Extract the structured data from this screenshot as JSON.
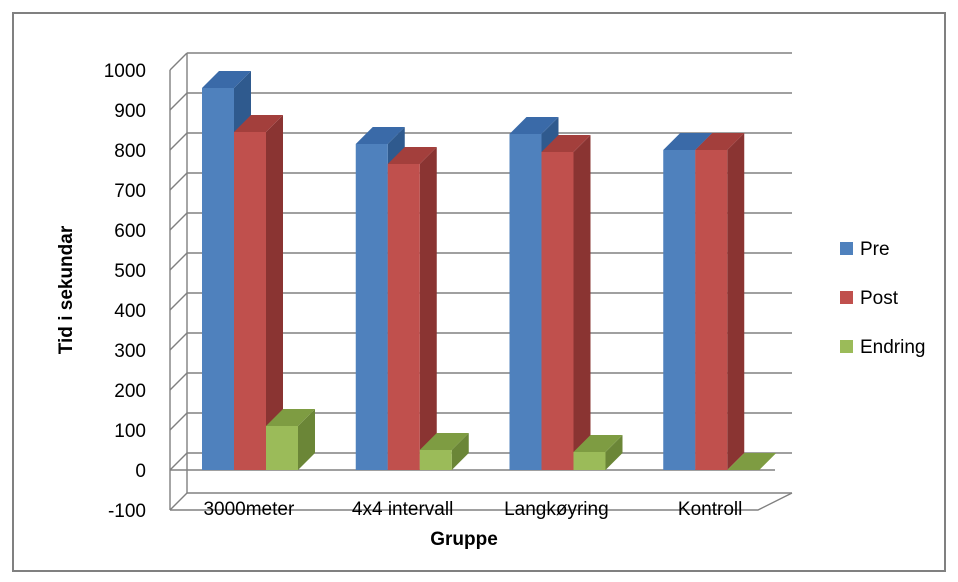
{
  "chart_data": {
    "type": "bar",
    "title": "",
    "xlabel": "Gruppe",
    "ylabel": "Tid i sekundar",
    "ylim": [
      -100,
      1000
    ],
    "yticks": [
      1000,
      900,
      800,
      700,
      600,
      500,
      400,
      300,
      200,
      100,
      0,
      -100
    ],
    "categories": [
      "3000meter",
      "4x4 intervall",
      "Langkøyring",
      "Kontroll"
    ],
    "series": [
      {
        "name": "Pre",
        "values": [
          955,
          815,
          840,
          800
        ]
      },
      {
        "name": "Post",
        "values": [
          845,
          765,
          795,
          800
        ]
      },
      {
        "name": "Endring",
        "values": [
          110,
          50,
          45,
          0
        ]
      }
    ],
    "legend_position": "right",
    "grid": true,
    "colors": {
      "Pre": {
        "front": "#4F81BD",
        "top": "#3A6AA8",
        "side": "#2F5A8E"
      },
      "Post": {
        "front": "#C0504D",
        "top": "#A33F3C",
        "side": "#8A3432"
      },
      "Endring": {
        "front": "#9BBB59",
        "top": "#7E9C42",
        "side": "#6B8637"
      },
      "grid": "#808080"
    }
  }
}
